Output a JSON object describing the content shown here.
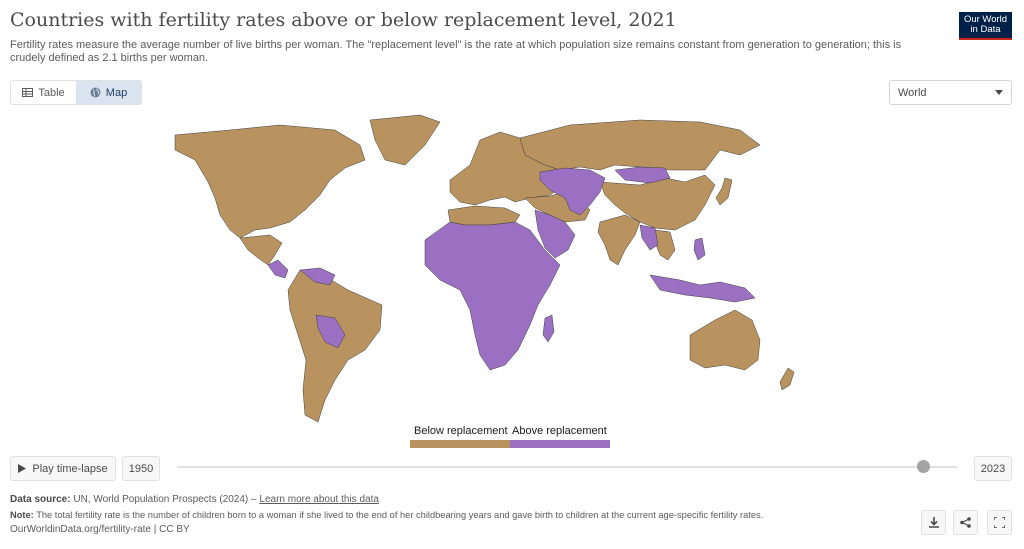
{
  "header": {
    "title": "Countries with fertility rates above or below replacement level, 2021",
    "subtitle": "Fertility rates measure the average number of live births per woman. The \"replacement level\" is the rate at which population size remains constant from generation to generation; this is crudely defined as 2.1 births per woman.",
    "logo_line1": "Our World",
    "logo_line2": "in Data"
  },
  "tabs": [
    {
      "label": "Table",
      "icon": "table-icon",
      "active": false
    },
    {
      "label": "Map",
      "icon": "globe-icon",
      "active": true
    }
  ],
  "region_select": {
    "value": "World"
  },
  "colors": {
    "below": "#b8935f",
    "above": "#9b70c2",
    "border": "#3f3f3f",
    "accent_bg": "#dbe5f0"
  },
  "legend": {
    "below_label": "Below replacement",
    "above_label": "Above replacement"
  },
  "timeline": {
    "play_label": "Play time-lapse",
    "start_year": "1950",
    "end_year": "2023",
    "selected_year": 2021,
    "min_year": 1950,
    "max_year": 2023
  },
  "footer": {
    "source_label": "Data source:",
    "source_text": "UN, World Population Prospects (2024) –",
    "source_link": "Learn more about this data",
    "note_label": "Note:",
    "note_text": "The total fertility rate is the number of children born to a woman if she lived to the end of her childbearing years and gave birth to children at the current age-specific fertility rates.",
    "url": "OurWorldinData.org/fertility-rate | CC BY"
  },
  "actions": [
    {
      "name": "download-icon"
    },
    {
      "name": "share-icon"
    },
    {
      "name": "fullscreen-icon"
    }
  ]
}
